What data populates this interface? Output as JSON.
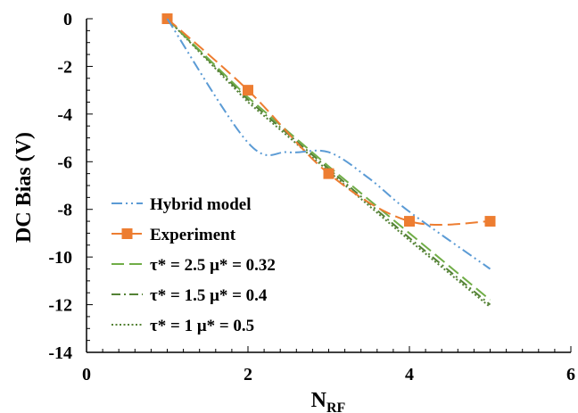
{
  "chart_data": {
    "type": "line",
    "xlabel": {
      "main": "N",
      "sub": "RF"
    },
    "ylabel": "DC Bias (V)",
    "xlim": [
      0,
      6
    ],
    "ylim": [
      -14,
      0
    ],
    "xticks": [
      "0",
      "2",
      "4",
      "6"
    ],
    "yticks": [
      "0",
      "-2",
      "-4",
      "-6",
      "-8",
      "-10",
      "-12",
      "-14"
    ],
    "grid": false,
    "legend_position": "bottom-left",
    "series": [
      {
        "name": "Hybrid model",
        "color": "#5B9BD5",
        "style": "dash-dot-dot",
        "smooth": true,
        "marker": "none",
        "x": [
          1,
          2,
          2.5,
          3,
          3.5,
          4,
          5
        ],
        "y": [
          0,
          -5.2,
          -5.6,
          -5.6,
          -6.7,
          -8.1,
          -10.5
        ]
      },
      {
        "name": "Experiment",
        "color": "#ED7D31",
        "style": "long-dash",
        "smooth": true,
        "marker": "square",
        "x": [
          1,
          2,
          3,
          4,
          5
        ],
        "y": [
          0,
          -3,
          -6.5,
          -8.5,
          -8.5
        ]
      },
      {
        "name": "τ* = 2.5 μ* = 0.32",
        "color": "#70AD47",
        "style": "long-dash",
        "smooth": false,
        "marker": "none",
        "x": [
          1,
          2,
          3,
          4,
          5
        ],
        "y": [
          0,
          -3.3,
          -6.2,
          -9.0,
          -11.8
        ]
      },
      {
        "name": "τ* = 1.5 μ* = 0.4",
        "color": "#548235",
        "style": "dash-dot",
        "smooth": false,
        "marker": "none",
        "x": [
          1,
          2,
          3,
          4,
          5
        ],
        "y": [
          0,
          -3.4,
          -6.3,
          -9.2,
          -12.0
        ]
      },
      {
        "name": "τ* = 1 μ* = 0.5",
        "color": "#548235",
        "style": "dotted",
        "smooth": false,
        "marker": "none",
        "x": [
          1,
          2,
          3,
          4,
          5
        ],
        "y": [
          0,
          -3.5,
          -6.4,
          -9.3,
          -12.1
        ]
      }
    ]
  }
}
